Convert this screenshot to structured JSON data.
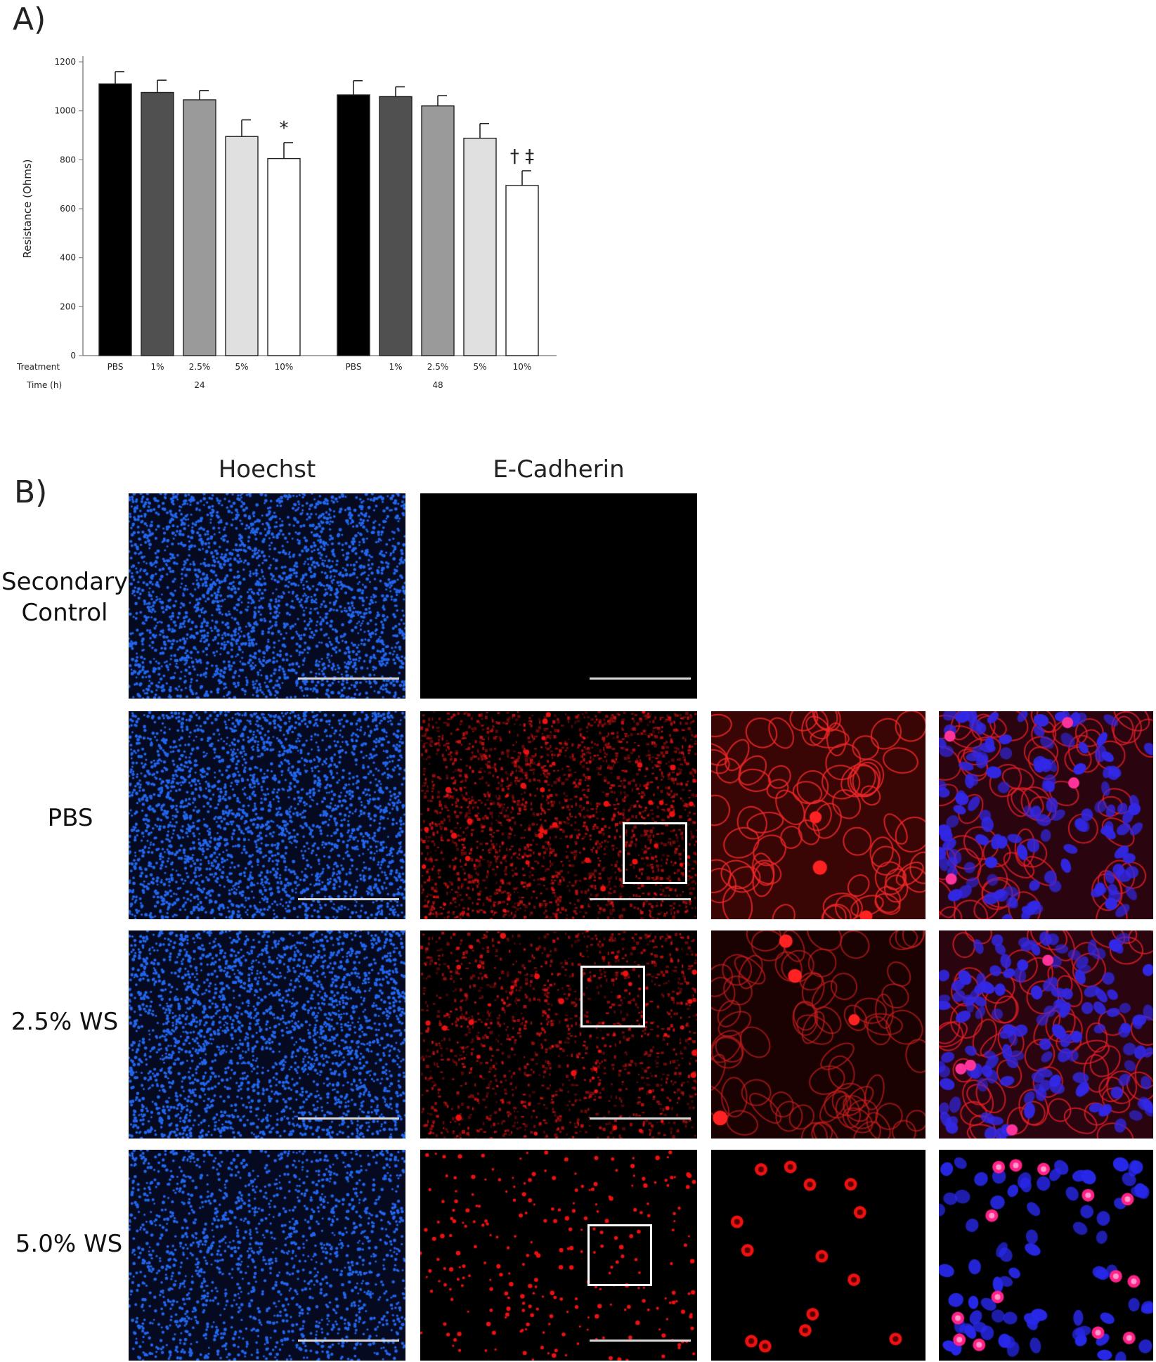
{
  "panel_a_label": "A)",
  "panel_b_label": "B)",
  "chart_data": {
    "type": "bar",
    "ylabel": "Resistance (Ohms)",
    "ylim": [
      0,
      1200
    ],
    "yticks": [
      "0",
      "200",
      "400",
      "600",
      "800",
      "1000",
      "1200"
    ],
    "row_labels": {
      "treatment": "Treatment",
      "time": "Time (h)"
    },
    "groups": [
      {
        "time": "24",
        "bars": [
          {
            "treatment": "PBS",
            "value": 1110,
            "error": 50,
            "color": "#000000"
          },
          {
            "treatment": "1%",
            "value": 1075,
            "error": 50,
            "color": "#505050"
          },
          {
            "treatment": "2.5%",
            "value": 1045,
            "error": 38,
            "color": "#9a9a9a"
          },
          {
            "treatment": "5%",
            "value": 895,
            "error": 68,
            "color": "#e0e0e0"
          },
          {
            "treatment": "10%",
            "value": 805,
            "error": 65,
            "color": "#ffffff",
            "annotation": "*"
          }
        ]
      },
      {
        "time": "48",
        "bars": [
          {
            "treatment": "PBS",
            "value": 1065,
            "error": 58,
            "color": "#000000"
          },
          {
            "treatment": "1%",
            "value": 1058,
            "error": 40,
            "color": "#505050"
          },
          {
            "treatment": "2.5%",
            "value": 1020,
            "error": 42,
            "color": "#9a9a9a"
          },
          {
            "treatment": "5%",
            "value": 888,
            "error": 60,
            "color": "#e0e0e0"
          },
          {
            "treatment": "10%",
            "value": 695,
            "error": 60,
            "color": "#ffffff",
            "annotation": "† ‡"
          }
        ]
      }
    ]
  },
  "micrographs": {
    "column_headers": [
      "Hoechst",
      "E-Cadherin"
    ],
    "rows": [
      {
        "label": "Secondary Control"
      },
      {
        "label": "PBS"
      },
      {
        "label": "2.5% WS"
      },
      {
        "label": "5.0% WS"
      }
    ],
    "stain_colors": {
      "hoechst": "#2266ee",
      "ecadherin": "#ee1111"
    }
  }
}
